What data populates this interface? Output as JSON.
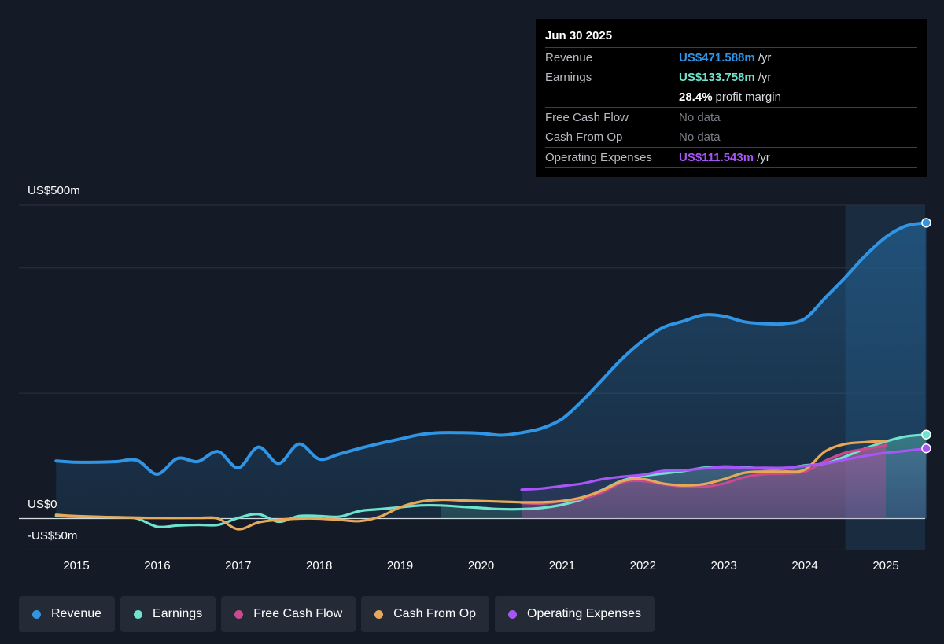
{
  "tooltip": {
    "date": "Jun 30 2025",
    "rows": [
      {
        "label": "Revenue",
        "value": "US$471.588m",
        "unit": "/yr",
        "color": "#2f95e4"
      },
      {
        "label": "Earnings",
        "value": "US$133.758m",
        "unit": "/yr",
        "color": "#6ee4cf"
      },
      {
        "label": "",
        "value": "28.4%",
        "unit": "profit margin",
        "color": "#ffffff"
      },
      {
        "label": "Free Cash Flow",
        "value": "No data",
        "unit": "",
        "color": "#7a7f86"
      },
      {
        "label": "Cash From Op",
        "value": "No data",
        "unit": "",
        "color": "#7a7f86"
      },
      {
        "label": "Operating Expenses",
        "value": "US$111.543m",
        "unit": "/yr",
        "color": "#a855f7"
      }
    ]
  },
  "legend": [
    {
      "label": "Revenue",
      "color": "#2f95e4"
    },
    {
      "label": "Earnings",
      "color": "#6ee4cf"
    },
    {
      "label": "Free Cash Flow",
      "color": "#c84b8e"
    },
    {
      "label": "Cash From Op",
      "color": "#e8a85a"
    },
    {
      "label": "Operating Expenses",
      "color": "#a855f7"
    }
  ],
  "chart_data": {
    "type": "line",
    "y_top_label": "US$500m",
    "y_zero_label": "US$0",
    "y_bottom_label": "-US$50m",
    "ylim": [
      -50,
      500
    ],
    "x_ticks": [
      "2015",
      "2016",
      "2017",
      "2018",
      "2019",
      "2020",
      "2021",
      "2022",
      "2023",
      "2024",
      "2025"
    ],
    "x_tick_values": [
      2015,
      2016,
      2017,
      2018,
      2019,
      2020,
      2021,
      2022,
      2023,
      2024,
      2025
    ],
    "xlim": [
      2014.45,
      2025.65
    ],
    "gridlines": [
      500,
      400,
      200,
      0,
      -50
    ],
    "highlight_start": 2024.5,
    "series": [
      {
        "name": "Revenue",
        "color": "#2f95e4",
        "points": [
          [
            2014.75,
            92
          ],
          [
            2015.0,
            90
          ],
          [
            2015.25,
            90
          ],
          [
            2015.5,
            91
          ],
          [
            2015.75,
            93
          ],
          [
            2016.0,
            71
          ],
          [
            2016.25,
            96
          ],
          [
            2016.5,
            91
          ],
          [
            2016.75,
            107
          ],
          [
            2017.0,
            81
          ],
          [
            2017.25,
            114
          ],
          [
            2017.5,
            88
          ],
          [
            2017.75,
            119
          ],
          [
            2018.0,
            95
          ],
          [
            2018.25,
            103
          ],
          [
            2018.5,
            112
          ],
          [
            2018.75,
            120
          ],
          [
            2019.0,
            127
          ],
          [
            2019.25,
            134
          ],
          [
            2019.5,
            137
          ],
          [
            2019.75,
            137
          ],
          [
            2020.0,
            136
          ],
          [
            2020.25,
            133
          ],
          [
            2020.5,
            137
          ],
          [
            2020.75,
            144
          ],
          [
            2021.0,
            159
          ],
          [
            2021.25,
            188
          ],
          [
            2021.5,
            222
          ],
          [
            2021.75,
            256
          ],
          [
            2022.0,
            284
          ],
          [
            2022.25,
            305
          ],
          [
            2022.5,
            315
          ],
          [
            2022.75,
            325
          ],
          [
            2023.0,
            323
          ],
          [
            2023.25,
            314
          ],
          [
            2023.5,
            311
          ],
          [
            2023.75,
            311
          ],
          [
            2024.0,
            319
          ],
          [
            2024.25,
            352
          ],
          [
            2024.5,
            385
          ],
          [
            2024.75,
            420
          ],
          [
            2025.0,
            449
          ],
          [
            2025.25,
            467
          ],
          [
            2025.5,
            472
          ]
        ]
      },
      {
        "name": "Earnings",
        "color": "#6ee4cf",
        "points": [
          [
            2014.75,
            4
          ],
          [
            2015.0,
            3
          ],
          [
            2015.5,
            2
          ],
          [
            2015.75,
            0
          ],
          [
            2016.0,
            -13
          ],
          [
            2016.25,
            -11
          ],
          [
            2016.5,
            -10
          ],
          [
            2016.75,
            -10
          ],
          [
            2017.0,
            1
          ],
          [
            2017.25,
            7
          ],
          [
            2017.5,
            -5
          ],
          [
            2017.75,
            4
          ],
          [
            2018.0,
            4
          ],
          [
            2018.25,
            3
          ],
          [
            2018.5,
            12
          ],
          [
            2018.75,
            15
          ],
          [
            2019.0,
            18
          ],
          [
            2019.25,
            21
          ],
          [
            2019.5,
            21
          ],
          [
            2019.75,
            19
          ],
          [
            2020.0,
            17
          ],
          [
            2020.25,
            15
          ],
          [
            2020.5,
            15
          ],
          [
            2020.75,
            17
          ],
          [
            2021.0,
            22
          ],
          [
            2021.25,
            31
          ],
          [
            2021.5,
            46
          ],
          [
            2021.75,
            61
          ],
          [
            2022.0,
            68
          ],
          [
            2022.25,
            72
          ],
          [
            2022.5,
            76
          ],
          [
            2022.75,
            81
          ],
          [
            2023.0,
            83
          ],
          [
            2023.25,
            82
          ],
          [
            2023.5,
            80
          ],
          [
            2023.75,
            80
          ],
          [
            2024.0,
            85
          ],
          [
            2024.25,
            88
          ],
          [
            2024.5,
            99
          ],
          [
            2024.75,
            112
          ],
          [
            2025.0,
            123
          ],
          [
            2025.25,
            131
          ],
          [
            2025.5,
            134
          ]
        ]
      },
      {
        "name": "Free Cash Flow",
        "color": "#c84b8e",
        "points": [
          [
            2020.5,
            25
          ],
          [
            2020.75,
            24
          ],
          [
            2021.0,
            28
          ],
          [
            2021.25,
            32
          ],
          [
            2021.5,
            42
          ],
          [
            2021.75,
            58
          ],
          [
            2022.0,
            60
          ],
          [
            2022.25,
            55
          ],
          [
            2022.5,
            51
          ],
          [
            2022.75,
            51
          ],
          [
            2023.0,
            56
          ],
          [
            2023.25,
            66
          ],
          [
            2023.5,
            71
          ],
          [
            2023.75,
            72
          ],
          [
            2024.0,
            75
          ],
          [
            2024.25,
            92
          ],
          [
            2024.5,
            105
          ],
          [
            2024.75,
            111
          ],
          [
            2025.0,
            117
          ]
        ]
      },
      {
        "name": "Cash From Op",
        "color": "#e8a85a",
        "points": [
          [
            2014.75,
            6
          ],
          [
            2015.0,
            4
          ],
          [
            2015.5,
            2
          ],
          [
            2016.0,
            1
          ],
          [
            2016.5,
            1
          ],
          [
            2016.75,
            0
          ],
          [
            2017.0,
            -17
          ],
          [
            2017.25,
            -6
          ],
          [
            2017.5,
            -2
          ],
          [
            2017.75,
            0
          ],
          [
            2018.0,
            0
          ],
          [
            2018.25,
            -2
          ],
          [
            2018.5,
            -4
          ],
          [
            2018.75,
            3
          ],
          [
            2019.0,
            18
          ],
          [
            2019.25,
            27
          ],
          [
            2019.5,
            30
          ],
          [
            2019.75,
            29
          ],
          [
            2020.0,
            28
          ],
          [
            2020.25,
            27
          ],
          [
            2020.5,
            26
          ],
          [
            2020.75,
            26
          ],
          [
            2021.0,
            28
          ],
          [
            2021.25,
            34
          ],
          [
            2021.5,
            45
          ],
          [
            2021.75,
            60
          ],
          [
            2022.0,
            63
          ],
          [
            2022.25,
            56
          ],
          [
            2022.5,
            53
          ],
          [
            2022.75,
            55
          ],
          [
            2023.0,
            63
          ],
          [
            2023.25,
            73
          ],
          [
            2023.5,
            75
          ],
          [
            2023.75,
            75
          ],
          [
            2024.0,
            78
          ],
          [
            2024.25,
            107
          ],
          [
            2024.5,
            119
          ],
          [
            2024.75,
            122
          ],
          [
            2025.0,
            124
          ]
        ]
      },
      {
        "name": "Operating Expenses",
        "color": "#a855f7",
        "points": [
          [
            2020.5,
            46
          ],
          [
            2020.75,
            48
          ],
          [
            2021.0,
            52
          ],
          [
            2021.25,
            56
          ],
          [
            2021.5,
            63
          ],
          [
            2021.75,
            67
          ],
          [
            2022.0,
            70
          ],
          [
            2022.25,
            76
          ],
          [
            2022.5,
            77
          ],
          [
            2022.75,
            80
          ],
          [
            2023.0,
            82
          ],
          [
            2023.25,
            81
          ],
          [
            2023.5,
            81
          ],
          [
            2023.75,
            81
          ],
          [
            2024.0,
            84
          ],
          [
            2024.25,
            88
          ],
          [
            2024.5,
            94
          ],
          [
            2024.75,
            100
          ],
          [
            2025.0,
            105
          ],
          [
            2025.25,
            108
          ],
          [
            2025.5,
            112
          ]
        ]
      }
    ]
  }
}
